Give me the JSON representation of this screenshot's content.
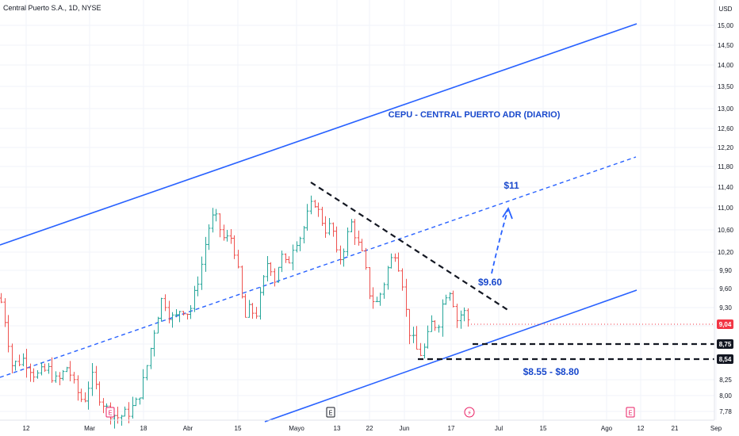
{
  "header": {
    "symbol_title": "Central Puerto S.A., 1D, NYSE"
  },
  "chart_data": {
    "type": "ohlc",
    "title": "CEPU - CENTRAL PUERTO ADR (DIARIO)",
    "currency": "USD",
    "y_scale": "log",
    "ylim": [
      7.62,
      15.4
    ],
    "grid": true,
    "y_ticks": [
      "15,00",
      "14,50",
      "14,00",
      "13,50",
      "13,00",
      "12,60",
      "12,20",
      "11,80",
      "11,40",
      "11,00",
      "10,60",
      "10,20",
      "9,90",
      "9,60",
      "9,30",
      "9,00",
      "8,75",
      "8,54",
      "8,25",
      "8,00",
      "7,78"
    ],
    "x_ticks": [
      "12",
      "Mar",
      "18",
      "Abr",
      "15",
      "Mayo",
      "13",
      "22",
      "Jun",
      "17",
      "Jul",
      "15",
      "Ago",
      "12",
      "21",
      "Sep"
    ],
    "current_price": {
      "label": "9,04",
      "value": 9.04,
      "color": "#f23645"
    },
    "levels": [
      {
        "label": "8,75",
        "value": 8.75
      },
      {
        "label": "8,54",
        "value": 8.54
      }
    ],
    "annotations": [
      {
        "text": "$11"
      },
      {
        "text": "$9.60"
      },
      {
        "text": "$8.55 - $8.80"
      }
    ],
    "event_markers": [
      "E",
      "E",
      "⚡",
      "E"
    ],
    "channel_color": "#2962ff",
    "up_color": "#26a69a",
    "down_color": "#ef5350"
  }
}
